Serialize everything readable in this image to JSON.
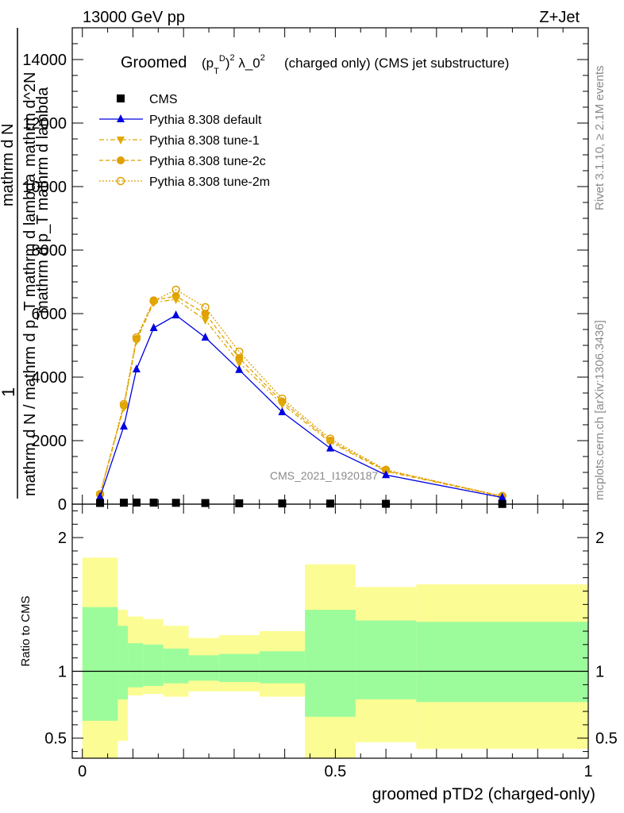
{
  "header": {
    "energy": "13000 GeV pp",
    "process": "Z+Jet"
  },
  "side": {
    "rivet": "Rivet 3.1.10, ≥ 2.1M events",
    "mcplots": "mcplots.cern.ch [arXiv:1306.3436]"
  },
  "chart_data": [
    {
      "type": "line",
      "title": "Groomed (p_T^D)^2 λ_0^2  (charged only) (CMS jet substructure)",
      "title_parts": {
        "lead": "Groomed",
        "tail": "(charged only) (CMS jet substructure)"
      },
      "ylabel_parts": {
        "one": "1",
        "a": "mathrm d N / mathrm d p_T mathrm d lambda",
        "b": "mathrm d^2N",
        "c": "mathrm d p_T mathrm d lambda",
        "d": "mathrm d N"
      },
      "watermark": "CMS_2021_I1920187",
      "ylim": [
        0,
        15000
      ],
      "yticks": [
        2000,
        4000,
        6000,
        8000,
        10000,
        12000,
        14000
      ],
      "yticklabels": [
        "2000",
        "4000",
        "6000",
        "8000",
        "10000",
        "12000",
        "14000"
      ],
      "legend_position": "top-left",
      "series": [
        {
          "name": "CMS",
          "color": "#000000",
          "marker": "square",
          "x": [
            0.035,
            0.082,
            0.107,
            0.141,
            0.185,
            0.243,
            0.31,
            0.395,
            0.49,
            0.6,
            0.83
          ],
          "y": [
            38,
            45,
            50,
            48,
            42,
            35,
            28,
            22,
            18,
            12,
            6
          ]
        },
        {
          "name": "Pythia 8.308 default",
          "color": "#0000e0",
          "marker": "triangle-up",
          "dash": "",
          "x": [
            0.035,
            0.082,
            0.107,
            0.141,
            0.185,
            0.243,
            0.31,
            0.395,
            0.49,
            0.6,
            0.83
          ],
          "y": [
            230,
            2450,
            4250,
            5550,
            5950,
            5250,
            4230,
            2900,
            1760,
            920,
            210
          ]
        },
        {
          "name": "Pythia 8.308 tune-1",
          "color": "#e0a800",
          "marker": "triangle-down",
          "dash": "6,3,2,3",
          "x": [
            0.035,
            0.082,
            0.107,
            0.141,
            0.185,
            0.243,
            0.31,
            0.395,
            0.49,
            0.6,
            0.83
          ],
          "y": [
            300,
            3050,
            5150,
            6350,
            6450,
            5800,
            4450,
            3150,
            1950,
            1030,
            240
          ]
        },
        {
          "name": "Pythia 8.308 tune-2c",
          "color": "#e0a000",
          "marker": "circle",
          "dash": "5,3",
          "x": [
            0.035,
            0.082,
            0.107,
            0.141,
            0.185,
            0.243,
            0.31,
            0.395,
            0.49,
            0.6,
            0.83
          ],
          "y": [
            320,
            3100,
            5200,
            6420,
            6550,
            6000,
            4600,
            3230,
            2000,
            1060,
            250
          ]
        },
        {
          "name": "Pythia 8.308 tune-2m",
          "color": "#e0a000",
          "marker": "circle-open",
          "dash": "2,2",
          "x": [
            0.035,
            0.082,
            0.107,
            0.141,
            0.185,
            0.243,
            0.31,
            0.395,
            0.49,
            0.6,
            0.83
          ],
          "y": [
            310,
            3150,
            5250,
            6400,
            6750,
            6200,
            4800,
            3320,
            2060,
            1080,
            255
          ]
        }
      ]
    },
    {
      "type": "area",
      "ylabel": "Ratio to CMS",
      "xlabel": "groomed pTD2 (charged-only)",
      "xlim": [
        -0.02,
        1.0
      ],
      "ylim": [
        0.35,
        2.25
      ],
      "xticklabels": [
        "0",
        "0.5",
        "1"
      ],
      "xticks": [
        0,
        0.5,
        1
      ],
      "yticklabels": [
        "0.5",
        "1",
        "2"
      ],
      "yticks": [
        0.5,
        1,
        2
      ],
      "reference_line": 1,
      "bins": [
        {
          "x0": 0.0,
          "x1": 0.07,
          "stat_lo": 0.63,
          "stat_hi": 1.48,
          "tot_lo": 0.35,
          "tot_hi": 1.85
        },
        {
          "x0": 0.07,
          "x1": 0.09,
          "stat_lo": 0.79,
          "stat_hi": 1.34,
          "tot_lo": 0.48,
          "tot_hi": 1.46
        },
        {
          "x0": 0.09,
          "x1": 0.12,
          "stat_lo": 0.88,
          "stat_hi": 1.21,
          "tot_lo": 0.82,
          "tot_hi": 1.41
        },
        {
          "x0": 0.12,
          "x1": 0.16,
          "stat_lo": 0.89,
          "stat_hi": 1.2,
          "tot_lo": 0.83,
          "tot_hi": 1.39
        },
        {
          "x0": 0.16,
          "x1": 0.21,
          "stat_lo": 0.91,
          "stat_hi": 1.17,
          "tot_lo": 0.81,
          "tot_hi": 1.34
        },
        {
          "x0": 0.21,
          "x1": 0.27,
          "stat_lo": 0.93,
          "stat_hi": 1.12,
          "tot_lo": 0.85,
          "tot_hi": 1.25
        },
        {
          "x0": 0.27,
          "x1": 0.35,
          "stat_lo": 0.92,
          "stat_hi": 1.13,
          "tot_lo": 0.85,
          "tot_hi": 1.27
        },
        {
          "x0": 0.35,
          "x1": 0.44,
          "stat_lo": 0.91,
          "stat_hi": 1.15,
          "tot_lo": 0.81,
          "tot_hi": 1.3
        },
        {
          "x0": 0.44,
          "x1": 0.54,
          "stat_lo": 0.66,
          "stat_hi": 1.46,
          "tot_lo": 0.35,
          "tot_hi": 1.8
        },
        {
          "x0": 0.54,
          "x1": 0.66,
          "stat_lo": 0.79,
          "stat_hi": 1.38,
          "tot_lo": 0.47,
          "tot_hi": 1.63
        },
        {
          "x0": 0.66,
          "x1": 1.0,
          "stat_lo": 0.77,
          "stat_hi": 1.37,
          "tot_lo": 0.42,
          "tot_hi": 1.65
        }
      ],
      "colors": {
        "stat": "#9cfc9c",
        "total": "#fcfc94"
      }
    }
  ]
}
